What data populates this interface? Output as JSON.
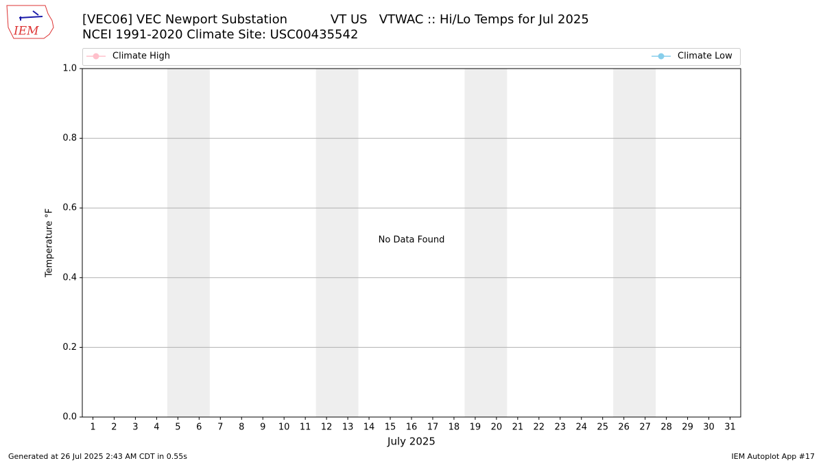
{
  "chart_data": {
    "type": "line",
    "title": "[VEC06] VEC Newport Substation           VT US   VTWAC :: Hi/Lo Temps for Jul 2025",
    "subtitle": "NCEI 1991-2020 Climate Site: USC00435542",
    "x_label": "July 2025",
    "y_label": "Temperature °F",
    "annotation": "No Data Found",
    "logo_text": "IEM",
    "footer_left": "Generated at 26 Jul 2025 2:43 AM CDT in 0.55s",
    "footer_right": "IEM Autoplot App #17",
    "legend": "top",
    "grid": true,
    "x": [
      1,
      2,
      3,
      4,
      5,
      6,
      7,
      8,
      9,
      10,
      11,
      12,
      13,
      14,
      15,
      16,
      17,
      18,
      19,
      20,
      21,
      22,
      23,
      24,
      25,
      26,
      27,
      28,
      29,
      30,
      31
    ],
    "series": [
      {
        "name": "Climate High",
        "color": "#ffc0cb",
        "values": [
          null,
          null,
          null,
          null,
          null,
          null,
          null,
          null,
          null,
          null,
          null,
          null,
          null,
          null,
          null,
          null,
          null,
          null,
          null,
          null,
          null,
          null,
          null,
          null,
          null,
          null,
          null,
          null,
          null,
          null,
          null
        ]
      },
      {
        "name": "Climate Low",
        "color": "#87ceeb",
        "values": [
          null,
          null,
          null,
          null,
          null,
          null,
          null,
          null,
          null,
          null,
          null,
          null,
          null,
          null,
          null,
          null,
          null,
          null,
          null,
          null,
          null,
          null,
          null,
          null,
          null,
          null,
          null,
          null,
          null,
          null,
          null
        ]
      }
    ],
    "shaded_spans": [
      [
        4.5,
        6.5
      ],
      [
        11.5,
        13.5
      ],
      [
        18.5,
        20.5
      ],
      [
        25.5,
        27.5
      ]
    ],
    "shade_color": "#eeeeee",
    "xlim": [
      0.5,
      31.5
    ],
    "xticks": [
      1,
      2,
      3,
      4,
      5,
      6,
      7,
      8,
      9,
      10,
      11,
      12,
      13,
      14,
      15,
      16,
      17,
      18,
      19,
      20,
      21,
      22,
      23,
      24,
      25,
      26,
      27,
      28,
      29,
      30,
      31
    ],
    "ylim": [
      0,
      1
    ],
    "yticks": [
      {
        "value": 0,
        "label": "0.0"
      },
      {
        "value": 0.2,
        "label": "0.2"
      },
      {
        "value": 0.4,
        "label": "0.4"
      },
      {
        "value": 0.6,
        "label": "0.6"
      },
      {
        "value": 0.8,
        "label": "0.8"
      },
      {
        "value": 1,
        "label": "1.0"
      }
    ]
  }
}
